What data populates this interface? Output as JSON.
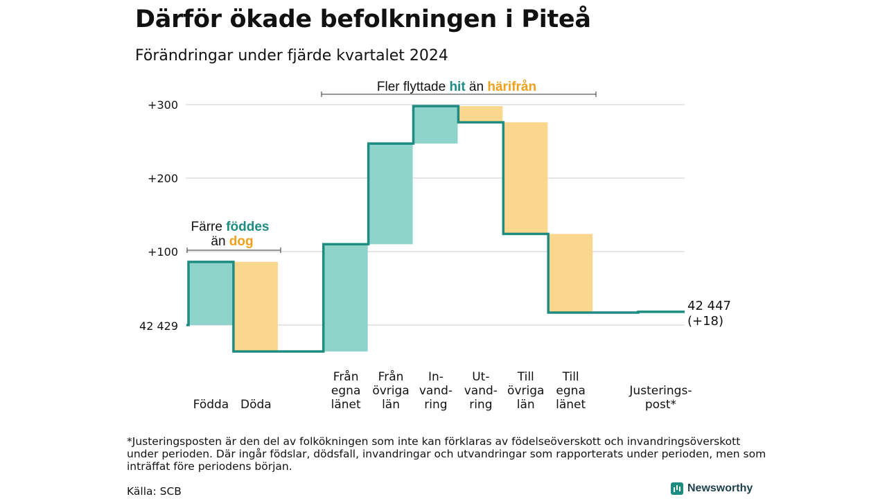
{
  "title": "Därför ökade befolkningen i Piteå",
  "subtitle": "Förändringar under fjärde kvartalet 2024",
  "colors": {
    "increase": "#8fd4ca",
    "decrease": "#fbd68d",
    "line": "#1e8c80",
    "accent_orange": "#f0a01a",
    "grid": "#dddddd"
  },
  "chart_data": {
    "type": "waterfall",
    "start_label": "42 429",
    "start_value": 42429,
    "end_label": "42 447",
    "end_change_label": "(+18)",
    "y_ticks": [
      {
        "value": 100,
        "label": "+100"
      },
      {
        "value": 200,
        "label": "+200"
      },
      {
        "value": 300,
        "label": "+300"
      }
    ],
    "steps": [
      {
        "lines": [
          "Födda"
        ],
        "change": 86
      },
      {
        "lines": [
          "Döda"
        ],
        "change": -122
      },
      {
        "lines": [],
        "change": 0
      },
      {
        "lines": [
          "Från",
          "egna",
          "länet"
        ],
        "change": 146
      },
      {
        "lines": [
          "Från",
          "övriga",
          "län"
        ],
        "change": 137
      },
      {
        "lines": [
          "In-",
          "vand-",
          "ring"
        ],
        "change": 51
      },
      {
        "lines": [
          "Ut-",
          "vand-",
          "ring"
        ],
        "change": -22
      },
      {
        "lines": [
          "Till",
          "övriga",
          "län"
        ],
        "change": -152
      },
      {
        "lines": [
          "Till",
          "egna",
          "länet"
        ],
        "change": -107
      },
      {
        "lines": [],
        "change": 0
      },
      {
        "lines": [
          "Justerings-",
          "post*"
        ],
        "change": 1
      }
    ],
    "annotations": {
      "births_line1_prefix": "Färre ",
      "births_line1_hl": "föddes",
      "births_line2_prefix": "än ",
      "births_line2_hl": "dog",
      "migration_prefix": "Fler flyttade ",
      "migration_hl1": "hit",
      "migration_mid": " än ",
      "migration_hl2": "härifrån"
    }
  },
  "footnote": "*Justeringsposten är den del av folkökningen som inte kan förklaras av födelseöverskott och invandringsöverskott under perioden. Där ingår födslar, dödsfall, invandringar och utvandringar som rapporterats under perioden, men som inträffat före periodens början.",
  "source": "Källa: SCB",
  "brand": "Newsworthy"
}
